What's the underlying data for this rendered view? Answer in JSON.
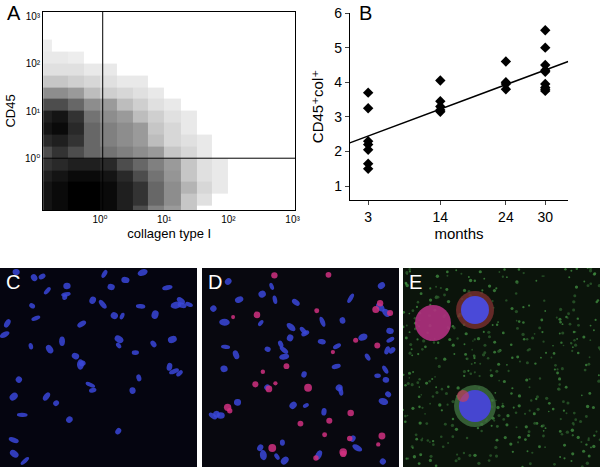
{
  "chart_data": [
    {
      "type": "heatmap",
      "panel": "A",
      "x_label": "collagen type I",
      "y_label": "CD45",
      "log": true,
      "grid": false,
      "color": "#000000",
      "xlim": [
        0.13,
        1100
      ],
      "ylim": [
        0.08,
        1250
      ],
      "xticks": [
        {
          "value": 1,
          "label": "10⁰"
        },
        {
          "value": 10,
          "label": "10¹"
        },
        {
          "value": 100,
          "label": "10²"
        },
        {
          "value": 1000,
          "label": "10³"
        }
      ],
      "yticks": [
        {
          "value": 1,
          "label": "10⁰"
        },
        {
          "value": 10,
          "label": "10¹"
        },
        {
          "value": 100,
          "label": "10²"
        },
        {
          "value": 1000,
          "label": "10³"
        }
      ],
      "x_edges": [
        0.1,
        0.18,
        0.32,
        0.56,
        1,
        1.8,
        3.2,
        5.6,
        10,
        18,
        32,
        56,
        100,
        180,
        320,
        560,
        1000
      ],
      "y_edges": [
        0.056,
        0.1,
        0.18,
        0.32,
        0.56,
        1,
        1.8,
        3.2,
        5.6,
        10,
        18,
        32,
        56,
        100,
        180,
        320,
        560,
        1000
      ],
      "cells": [
        [
          8,
          9,
          10,
          10,
          9,
          7,
          4,
          2,
          1,
          0.5,
          0,
          0,
          0,
          0,
          0,
          0
        ],
        [
          8,
          9,
          10,
          10,
          9,
          7,
          5,
          3,
          1.5,
          0.5,
          0.2,
          0,
          0,
          0,
          0,
          0
        ],
        [
          8,
          9,
          10,
          10,
          9,
          7,
          5,
          3,
          1.5,
          0.7,
          0.3,
          0.1,
          0,
          0,
          0,
          0
        ],
        [
          7,
          8,
          9,
          9,
          8,
          6,
          4,
          2.5,
          1.2,
          0.5,
          0.2,
          0.1,
          0,
          0,
          0,
          0
        ],
        [
          5,
          6,
          7,
          7,
          6,
          4,
          3,
          2,
          1,
          0.5,
          0.2,
          0.1,
          0,
          0,
          0,
          0
        ],
        [
          4,
          5,
          4,
          3,
          2.5,
          2,
          1.5,
          1,
          0.5,
          0.3,
          0.1,
          0,
          0,
          0,
          0,
          0
        ],
        [
          6,
          7,
          5,
          3,
          2,
          1.5,
          1,
          0.6,
          0.3,
          0.2,
          0.1,
          0,
          0,
          0,
          0,
          0
        ],
        [
          8,
          9,
          6,
          3,
          2,
          1.5,
          1,
          0.5,
          0.3,
          0.1,
          0,
          0,
          0,
          0,
          0,
          0
        ],
        [
          7,
          8,
          5,
          2.5,
          1.5,
          1,
          0.6,
          0.4,
          0.2,
          0.1,
          0,
          0,
          0,
          0,
          0,
          0
        ],
        [
          4,
          4,
          3,
          1.5,
          1,
          0.6,
          0.4,
          0.2,
          0.1,
          0,
          0,
          0,
          0,
          0,
          0,
          0
        ],
        [
          1.5,
          1.5,
          1,
          0.6,
          0.4,
          0.3,
          0.2,
          0.1,
          0,
          0,
          0,
          0,
          0,
          0,
          0,
          0
        ],
        [
          0.5,
          0.5,
          0.4,
          0.3,
          0.2,
          0.1,
          0.1,
          0,
          0,
          0,
          0,
          0,
          0,
          0,
          0,
          0
        ],
        [
          0.2,
          0.2,
          0.2,
          0.1,
          0.1,
          0,
          0,
          0,
          0,
          0,
          0,
          0,
          0,
          0,
          0,
          0
        ],
        [
          0.1,
          0.1,
          0.05,
          0,
          0,
          0,
          0,
          0,
          0,
          0,
          0,
          0,
          0,
          0,
          0,
          0
        ],
        [
          0.05,
          0,
          0,
          0,
          0,
          0,
          0,
          0,
          0,
          0,
          0,
          0,
          0,
          0,
          0,
          0
        ],
        [
          0,
          0,
          0,
          0,
          0,
          0,
          0,
          0,
          0,
          0,
          0,
          0,
          0,
          0,
          0,
          0
        ],
        [
          0,
          0,
          0,
          0,
          0,
          0,
          0,
          0,
          0,
          0,
          0,
          0,
          0,
          0,
          0,
          0
        ]
      ],
      "zlim": [
        0,
        10
      ],
      "gates": {
        "x": 1.1,
        "y": 1
      }
    },
    {
      "type": "scatter",
      "panel": "B",
      "x_label": "months",
      "y_label": "CD45⁺col⁺",
      "grid": false,
      "xlim": [
        0.2,
        33.5
      ],
      "ylim": [
        0.6,
        6
      ],
      "xticks": [
        3,
        14,
        24,
        30
      ],
      "yticks": [
        1,
        2,
        3,
        4,
        5,
        6
      ],
      "series": [
        {
          "type": "scatter",
          "marker": "diamond",
          "color": "#000000",
          "x": [
            3,
            3,
            3,
            3,
            3,
            3,
            3,
            14,
            14,
            14,
            14,
            14,
            24,
            24,
            24,
            24,
            30,
            30,
            30,
            30,
            30,
            30,
            30,
            30,
            30
          ],
          "values": [
            3.7,
            3.25,
            2.3,
            2.2,
            2.05,
            1.65,
            1.5,
            4.05,
            3.45,
            3.3,
            3.2,
            3.15,
            4.6,
            4.0,
            3.95,
            3.8,
            5.5,
            5.0,
            4.5,
            4.35,
            4.3,
            3.95,
            3.85,
            3.8,
            3.75
          ]
        },
        {
          "type": "line",
          "line_style": "solid",
          "color": "#000000",
          "x": [
            0.2,
            33.5
          ],
          "values": [
            2.25,
            4.6
          ]
        }
      ]
    }
  ],
  "images": [
    {
      "panel": "C"
    },
    {
      "panel": "D"
    },
    {
      "panel": "E"
    }
  ]
}
